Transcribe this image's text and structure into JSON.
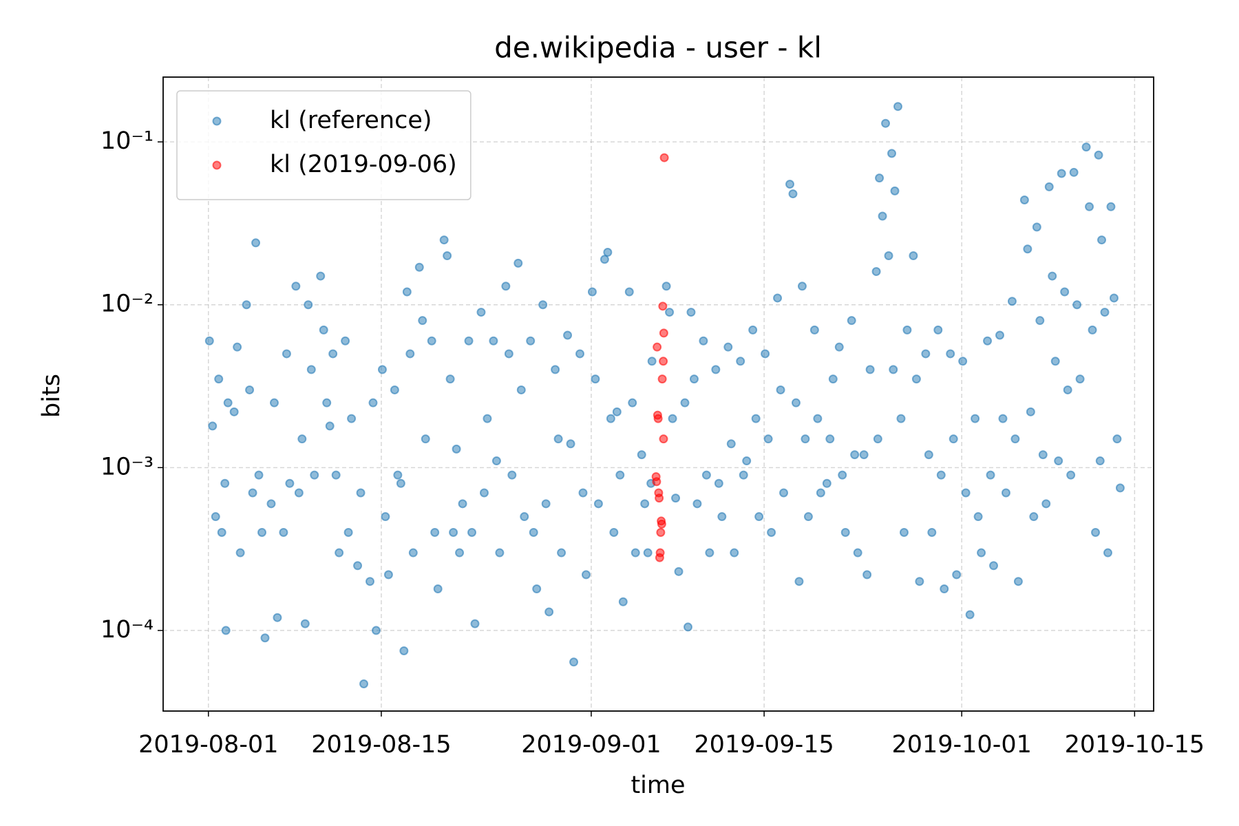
{
  "chart_data": {
    "type": "scatter",
    "title": "de.wikipedia - user - kl",
    "xlabel": "time",
    "ylabel": "bits",
    "xlim": [
      "2019-07-28T08:00",
      "2019-10-16T13:00"
    ],
    "xticks": [
      "2019-08-01",
      "2019-08-15",
      "2019-09-01",
      "2019-09-15",
      "2019-10-01",
      "2019-10-15"
    ],
    "ylim": [
      3.2e-05,
      0.25
    ],
    "yscale": "log",
    "yticks": [
      {
        "value": 0.0001,
        "label": "10⁻⁴"
      },
      {
        "value": 0.001,
        "label": "10⁻³"
      },
      {
        "value": 0.01,
        "label": "10⁻²"
      },
      {
        "value": 0.1,
        "label": "10⁻¹"
      }
    ],
    "grid": true,
    "legend": "upper left",
    "series": [
      {
        "name": "kl (reference)",
        "color": "#1f77b4",
        "x": [
          "2019-08-01T02:00",
          "2019-08-01T08:00",
          "2019-08-01T14:00",
          "2019-08-01T20:00",
          "2019-08-02T02:00",
          "2019-08-02T08:00",
          "2019-08-02T14:00",
          "2019-08-02T10:00",
          "2019-08-03T02:00",
          "2019-08-03T08:00",
          "2019-08-03T14:00",
          "2019-08-04T02:00",
          "2019-08-04T08:00",
          "2019-08-04T14:00",
          "2019-08-04T20:00",
          "2019-08-05T02:00",
          "2019-08-05T08:00",
          "2019-08-05T14:00",
          "2019-08-06T02:00",
          "2019-08-06T08:00",
          "2019-08-06T14:00",
          "2019-08-07T02:00",
          "2019-08-07T08:00",
          "2019-08-07T14:00",
          "2019-08-08T02:00",
          "2019-08-08T08:00",
          "2019-08-08T14:00",
          "2019-08-08T20:00",
          "2019-08-09T02:00",
          "2019-08-09T08:00",
          "2019-08-09T14:00",
          "2019-08-10T02:00",
          "2019-08-10T08:00",
          "2019-08-10T14:00",
          "2019-08-10T20:00",
          "2019-08-11T02:00",
          "2019-08-11T08:00",
          "2019-08-11T14:00",
          "2019-08-12T02:00",
          "2019-08-12T08:00",
          "2019-08-12T14:00",
          "2019-08-13T02:00",
          "2019-08-13T08:00",
          "2019-08-13T14:00",
          "2019-08-14T02:00",
          "2019-08-14T08:00",
          "2019-08-14T14:00",
          "2019-08-15T02:00",
          "2019-08-15T08:00",
          "2019-08-15T14:00",
          "2019-08-16T02:00",
          "2019-08-16T08:00",
          "2019-08-16T14:00",
          "2019-08-16T20:00",
          "2019-08-17T02:00",
          "2019-08-17T08:00",
          "2019-08-17T14:00",
          "2019-08-18T02:00",
          "2019-08-18T08:00",
          "2019-08-18T14:00",
          "2019-08-19T02:00",
          "2019-08-19T08:00",
          "2019-08-19T14:00",
          "2019-08-20T02:00",
          "2019-08-20T08:00",
          "2019-08-20T14:00",
          "2019-08-20T20:00",
          "2019-08-21T02:00",
          "2019-08-21T08:00",
          "2019-08-21T14:00",
          "2019-08-22T02:00",
          "2019-08-22T08:00",
          "2019-08-22T14:00",
          "2019-08-23T02:00",
          "2019-08-23T08:00",
          "2019-08-23T14:00",
          "2019-08-24T02:00",
          "2019-08-24T08:00",
          "2019-08-24T14:00",
          "2019-08-25T02:00",
          "2019-08-25T08:00",
          "2019-08-25T14:00",
          "2019-08-26T02:00",
          "2019-08-26T08:00",
          "2019-08-26T14:00",
          "2019-08-27T02:00",
          "2019-08-27T08:00",
          "2019-08-27T14:00",
          "2019-08-28T02:00",
          "2019-08-28T08:00",
          "2019-08-28T14:00",
          "2019-08-29T02:00",
          "2019-08-29T08:00",
          "2019-08-29T14:00",
          "2019-08-30T02:00",
          "2019-08-30T08:00",
          "2019-08-30T14:00",
          "2019-08-31T02:00",
          "2019-08-31T08:00",
          "2019-08-31T14:00",
          "2019-09-01T02:00",
          "2019-09-01T08:00",
          "2019-09-01T14:00",
          "2019-09-02T02:00",
          "2019-09-02T08:00",
          "2019-09-02T14:00",
          "2019-09-02T20:00",
          "2019-09-03T02:00",
          "2019-09-03T08:00",
          "2019-09-03T14:00",
          "2019-09-04T02:00",
          "2019-09-04T08:00",
          "2019-09-04T14:00",
          "2019-09-05T02:00",
          "2019-09-05T08:00",
          "2019-09-05T14:00",
          "2019-09-05T20:00",
          "2019-09-05T22:00",
          "2019-09-07T02:00",
          "2019-09-07T08:00",
          "2019-09-07T14:00",
          "2019-09-07T20:00",
          "2019-09-08T02:00",
          "2019-09-08T20:00",
          "2019-09-08T14:00",
          "2019-09-09T02:00",
          "2019-09-09T08:00",
          "2019-09-09T14:00",
          "2019-09-10T02:00",
          "2019-09-10T08:00",
          "2019-09-10T14:00",
          "2019-09-11T02:00",
          "2019-09-11T08:00",
          "2019-09-11T14:00",
          "2019-09-12T02:00",
          "2019-09-12T08:00",
          "2019-09-12T14:00",
          "2019-09-13T02:00",
          "2019-09-13T08:00",
          "2019-09-13T14:00",
          "2019-09-14T02:00",
          "2019-09-14T08:00",
          "2019-09-14T14:00",
          "2019-09-15T02:00",
          "2019-09-15T08:00",
          "2019-09-15T14:00",
          "2019-09-16T02:00",
          "2019-09-16T08:00",
          "2019-09-16T14:00",
          "2019-09-17T02:00",
          "2019-09-17T08:00",
          "2019-09-17T14:00",
          "2019-09-17T20:00",
          "2019-09-18T02:00",
          "2019-09-18T08:00",
          "2019-09-18T14:00",
          "2019-09-19T02:00",
          "2019-09-19T08:00",
          "2019-09-19T14:00",
          "2019-09-20T02:00",
          "2019-09-20T08:00",
          "2019-09-20T14:00",
          "2019-09-21T02:00",
          "2019-09-21T08:00",
          "2019-09-21T14:00",
          "2019-09-22T02:00",
          "2019-09-22T08:00",
          "2019-09-22T14:00",
          "2019-09-23T02:00",
          "2019-09-23T08:00",
          "2019-09-23T14:00",
          "2019-09-24T20:00",
          "2019-09-24T08:00",
          "2019-09-24T14:00",
          "2019-09-24T02:00",
          "2019-09-24T05:00",
          "2019-09-25T20:00",
          "2019-09-25T08:00",
          "2019-09-25T14:00",
          "2019-09-25T02:00",
          "2019-09-25T11:00",
          "2019-09-26T02:00",
          "2019-09-26T08:00",
          "2019-09-26T14:00",
          "2019-09-27T02:00",
          "2019-09-27T08:00",
          "2019-09-27T14:00",
          "2019-09-28T02:00",
          "2019-09-28T08:00",
          "2019-09-28T14:00",
          "2019-09-29T02:00",
          "2019-09-29T08:00",
          "2019-09-29T14:00",
          "2019-09-30T02:00",
          "2019-09-30T08:00",
          "2019-09-30T14:00",
          "2019-10-01T02:00",
          "2019-10-01T08:00",
          "2019-10-01T16:00",
          "2019-10-02T02:00",
          "2019-10-02T08:00",
          "2019-10-02T14:00",
          "2019-10-03T02:00",
          "2019-10-03T08:00",
          "2019-10-03T14:00",
          "2019-10-04T02:00",
          "2019-10-04T08:00",
          "2019-10-04T14:00",
          "2019-10-05T02:00",
          "2019-10-05T08:00",
          "2019-10-05T14:00",
          "2019-10-06T02:00",
          "2019-10-06T08:00",
          "2019-10-06T14:00",
          "2019-10-06T20:00",
          "2019-10-07T02:00",
          "2019-10-07T08:00",
          "2019-10-07T14:00",
          "2019-10-07T20:00",
          "2019-10-08T02:00",
          "2019-10-08T08:00",
          "2019-10-08T14:00",
          "2019-10-08T20:00",
          "2019-10-09T02:00",
          "2019-10-09T08:00",
          "2019-10-09T14:00",
          "2019-10-09T20:00",
          "2019-10-10T02:00",
          "2019-10-10T08:00",
          "2019-10-10T14:00",
          "2019-10-11T02:00",
          "2019-10-11T08:00",
          "2019-10-11T14:00",
          "2019-10-11T20:00",
          "2019-10-12T02:00",
          "2019-10-12T08:00",
          "2019-10-12T14:00",
          "2019-10-12T20:00",
          "2019-10-12T05:00",
          "2019-10-13T02:00",
          "2019-10-13T08:00",
          "2019-10-13T14:00",
          "2019-10-13T20:00"
        ],
        "values": [
          0.006,
          0.0018,
          0.0005,
          0.0035,
          0.0004,
          0.0008,
          0.0025,
          0.0001,
          0.0022,
          0.0055,
          0.0003,
          0.01,
          0.003,
          0.0007,
          0.024,
          0.0009,
          0.0004,
          9e-05,
          0.0006,
          0.0025,
          0.00012,
          0.0004,
          0.005,
          0.0008,
          0.013,
          0.0007,
          0.0015,
          0.00011,
          0.01,
          0.004,
          0.0009,
          0.015,
          0.007,
          0.0025,
          0.0018,
          0.005,
          0.0009,
          0.0003,
          0.006,
          0.0004,
          0.002,
          0.00025,
          0.0007,
          4.7e-05,
          0.0002,
          0.0025,
          0.0001,
          0.004,
          0.0005,
          0.00022,
          0.003,
          0.0009,
          0.0008,
          7.5e-05,
          0.012,
          0.005,
          0.0003,
          0.017,
          0.008,
          0.0015,
          0.006,
          0.0004,
          0.00018,
          0.025,
          0.02,
          0.0035,
          0.0004,
          0.0013,
          0.0003,
          0.0006,
          0.006,
          0.0004,
          0.00011,
          0.009,
          0.0007,
          0.002,
          0.006,
          0.0011,
          0.0003,
          0.013,
          0.005,
          0.0009,
          0.018,
          0.003,
          0.0005,
          0.006,
          0.0004,
          0.00018,
          0.01,
          0.0006,
          0.00013,
          0.004,
          0.0015,
          0.0003,
          0.0065,
          0.0014,
          6.4e-05,
          0.005,
          0.0007,
          0.00022,
          0.012,
          0.0035,
          0.0006,
          0.019,
          0.021,
          0.002,
          0.0004,
          0.0022,
          0.0009,
          0.00015,
          0.012,
          0.0025,
          0.0003,
          0.0012,
          0.0006,
          0.0003,
          0.0008,
          0.0045,
          0.013,
          0.009,
          0.002,
          0.00065,
          0.00023,
          0.000105,
          0.0025,
          0.009,
          0.0035,
          0.0006,
          0.006,
          0.0009,
          0.0003,
          0.004,
          0.0008,
          0.0005,
          0.0055,
          0.0014,
          0.0003,
          0.0045,
          0.0009,
          0.0011,
          0.007,
          0.002,
          0.0005,
          0.005,
          0.0015,
          0.0004,
          0.011,
          0.003,
          0.0007,
          0.055,
          0.048,
          0.0025,
          0.0002,
          0.013,
          0.0015,
          0.0005,
          0.007,
          0.002,
          0.0007,
          0.0008,
          0.0015,
          0.0035,
          0.0055,
          0.0009,
          0.0004,
          0.008,
          0.0012,
          0.0003,
          0.0012,
          0.00022,
          0.004,
          0.13,
          0.06,
          0.035,
          0.016,
          0.0015,
          0.165,
          0.085,
          0.05,
          0.02,
          0.004,
          0.002,
          0.0004,
          0.007,
          0.02,
          0.0035,
          0.0002,
          0.005,
          0.0012,
          0.0004,
          0.007,
          0.0009,
          0.00018,
          0.005,
          0.0015,
          0.00022,
          0.0045,
          0.0007,
          0.000125,
          0.002,
          0.0005,
          0.0003,
          0.006,
          0.0009,
          0.00025,
          0.0065,
          0.002,
          0.0007,
          0.0105,
          0.0015,
          0.0002,
          0.044,
          0.022,
          0.0022,
          0.0005,
          0.03,
          0.008,
          0.0012,
          0.0006,
          0.053,
          0.015,
          0.0045,
          0.0011,
          0.064,
          0.012,
          0.003,
          0.0009,
          0.065,
          0.01,
          0.0035,
          0.093,
          0.04,
          0.007,
          0.0004,
          0.083,
          0.025,
          0.009,
          0.0003,
          0.0011,
          0.04,
          0.011,
          0.0015,
          0.00075
        ]
      },
      {
        "name": "kl (2019-09-06)",
        "color": "#ff0000",
        "x": [
          "2019-09-06T22:00",
          "2019-09-06T19:00",
          "2019-09-06T21:00",
          "2019-09-06T08:00",
          "2019-09-06T20:00",
          "2019-09-06T18:00",
          "2019-09-06T09:00",
          "2019-09-06T10:00",
          "2019-09-06T20:30",
          "2019-09-06T06:00",
          "2019-09-06T07:00",
          "2019-09-06T11:00",
          "2019-09-06T12:00",
          "2019-09-06T16:00",
          "2019-09-06T17:00",
          "2019-09-06T15:00",
          "2019-09-06T14:00",
          "2019-09-06T13:00"
        ],
        "values": [
          0.08,
          0.0098,
          0.0067,
          0.0055,
          0.0045,
          0.0035,
          0.0021,
          0.002,
          0.0015,
          0.00088,
          0.00082,
          0.0007,
          0.00065,
          0.00047,
          0.00045,
          0.0004,
          0.0003,
          0.00028
        ]
      }
    ]
  }
}
